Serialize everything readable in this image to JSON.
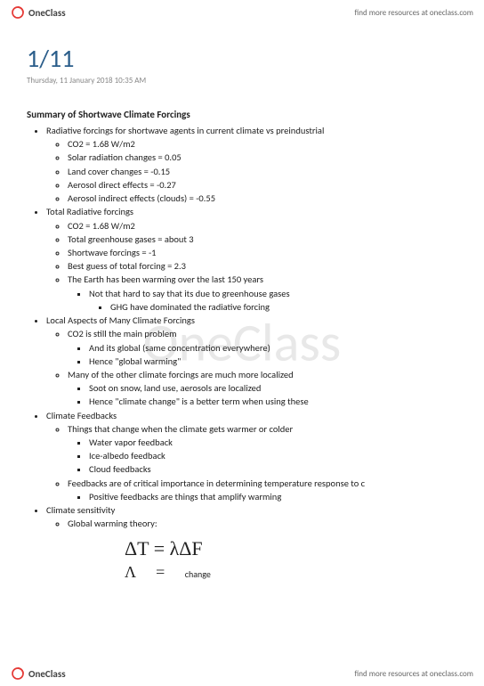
{
  "brand": {
    "name": "OneClass",
    "icon_color": "#e53935"
  },
  "tagline": "find more resources at oneclass.com",
  "watermark": "OneClass",
  "title": "1/11",
  "date_line": "Thursday, 11 January 2018        10:35 AM",
  "summary_title": "Summary of Shortwave Climate Forcings",
  "bullets": [
    {
      "text": "Radiative forcings for shortwave agents in current climate vs preindustrial",
      "children": [
        {
          "text": "CO2 = 1.68 W/m2"
        },
        {
          "text": "Solar radiation changes = 0.05"
        },
        {
          "text": "Land cover changes = -0.15"
        },
        {
          "text": "Aerosol direct effects = -0.27"
        },
        {
          "text": "Aerosol indirect effects (clouds) = -0.55"
        }
      ]
    },
    {
      "text": "Total Radiative forcings",
      "children": [
        {
          "text": "CO2 = 1.68 W/m2"
        },
        {
          "text": "Total greenhouse gases = about 3"
        },
        {
          "text": "Shortwave forcings = -1"
        },
        {
          "text": "Best guess of total forcing = 2.3"
        },
        {
          "text": "The Earth has been warming over the last 150 years",
          "children": [
            {
              "text": "Not that hard to say that its due to greenhouse gases",
              "children": [
                {
                  "text": "GHG have dominated the radiative forcing"
                }
              ]
            }
          ]
        }
      ]
    },
    {
      "text": "Local Aspects of Many Climate Forcings",
      "children": [
        {
          "text": "CO2 is still the main problem",
          "children": [
            {
              "text": "And its global (same concentration everywhere)"
            },
            {
              "text": "Hence \"global warming\""
            }
          ]
        },
        {
          "text": "Many of the other climate forcings are much more localized",
          "children": [
            {
              "text": "Soot on snow, land use, aerosols are localized"
            },
            {
              "text": "Hence \"climate change\" is a better term when using these"
            }
          ]
        }
      ]
    },
    {
      "text": "Climate Feedbacks",
      "children": [
        {
          "text": "Things that change when the climate gets warmer or colder",
          "children": [
            {
              "text": "Water vapor feedback"
            },
            {
              "text": "Ice-albedo feedback"
            },
            {
              "text": "Cloud feedbacks"
            }
          ]
        },
        {
          "text": "Feedbacks are of critical importance in determining temperature response to c",
          "children": [
            {
              "text": "Positive feedbacks are things that amplify warming"
            }
          ]
        }
      ]
    },
    {
      "text": "Climate sensitivity",
      "children": [
        {
          "text": "Global warming theory:"
        }
      ]
    }
  ],
  "formula": {
    "line1": "ΔT = λΔF",
    "symbol": "Λ",
    "equals": "=",
    "word": "change"
  }
}
